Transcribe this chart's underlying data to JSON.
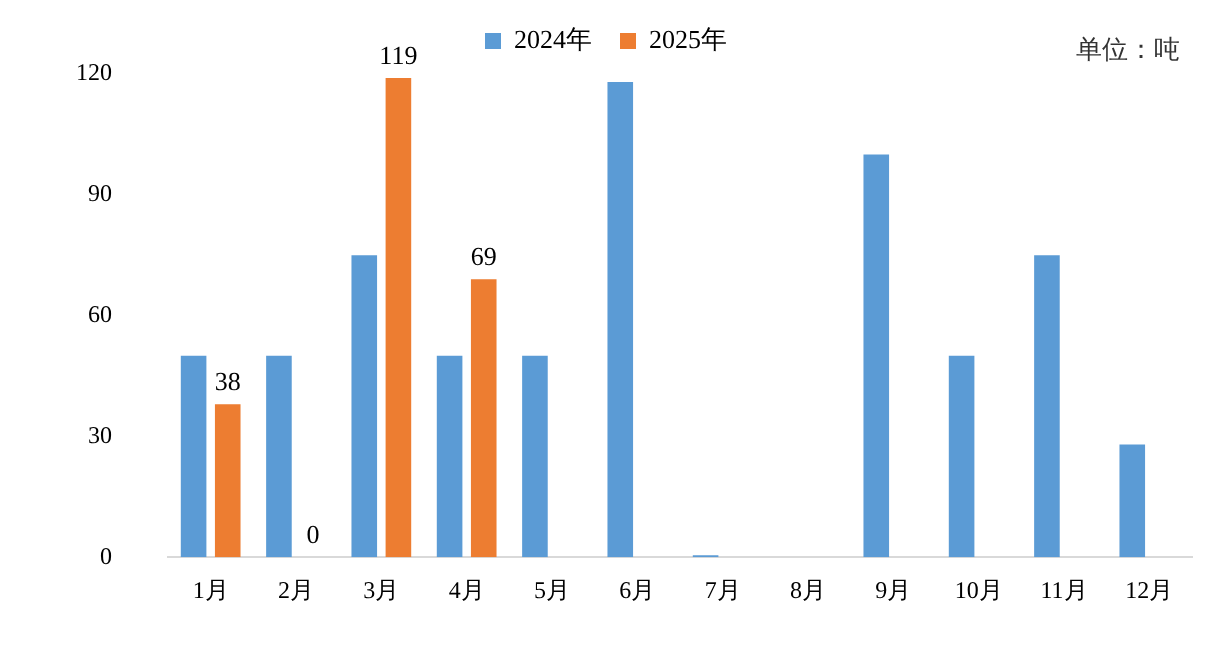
{
  "chart_data": {
    "type": "bar",
    "categories": [
      "1月",
      "2月",
      "3月",
      "4月",
      "5月",
      "6月",
      "7月",
      "8月",
      "9月",
      "10月",
      "11月",
      "12月"
    ],
    "series": [
      {
        "name": "2024年",
        "color": "#5b9bd5",
        "values": [
          50,
          50,
          75,
          50,
          50,
          118,
          0.5,
          0,
          100,
          50,
          75,
          28
        ]
      },
      {
        "name": "2025年",
        "color": "#ed7d31",
        "values": [
          38,
          0,
          119,
          69,
          null,
          null,
          null,
          null,
          null,
          null,
          null,
          null
        ],
        "value_labels": [
          "38",
          "0",
          "119",
          "69",
          null,
          null,
          null,
          null,
          null,
          null,
          null,
          null
        ]
      }
    ],
    "ylim": [
      0,
      120
    ],
    "yticks": [
      0,
      30,
      60,
      90,
      120
    ],
    "grid": false,
    "legend": "top",
    "annotations": [
      "单位：吨"
    ]
  }
}
